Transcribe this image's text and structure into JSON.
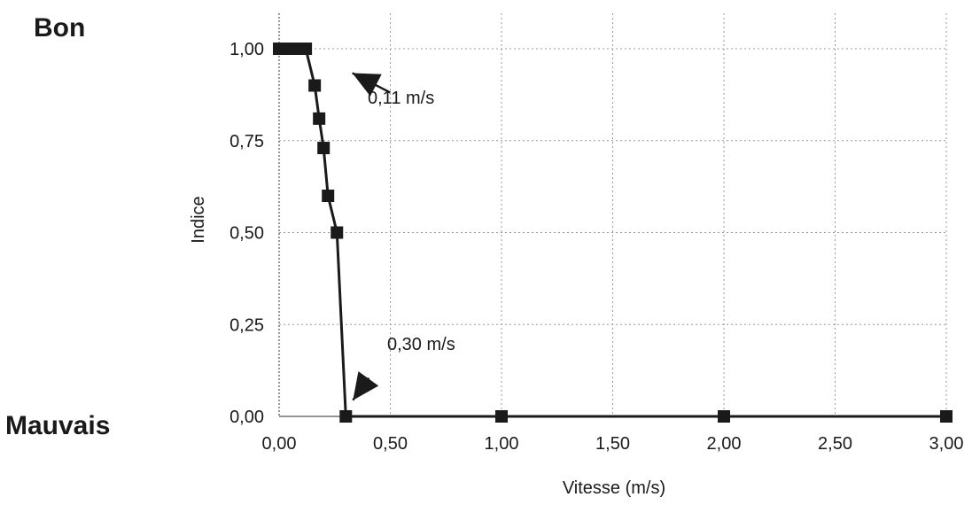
{
  "chart_data": {
    "type": "line",
    "title": "",
    "xlabel": "Vitesse (m/s)",
    "ylabel": "Indice",
    "xlim": [
      0,
      3
    ],
    "ylim": [
      0,
      1
    ],
    "grid": true,
    "x_ticks": [
      "0,00",
      "0,50",
      "1,00",
      "1,50",
      "2,00",
      "2,50",
      "3,00"
    ],
    "x_tick_values": [
      0,
      0.5,
      1,
      1.5,
      2,
      2.5,
      3
    ],
    "y_ticks": [
      "0,00",
      "0,25",
      "0,50",
      "0,75",
      "1,00"
    ],
    "y_tick_values": [
      0,
      0.25,
      0.5,
      0.75,
      1
    ],
    "series": [
      {
        "x": [
          0.0,
          0.02,
          0.04,
          0.06,
          0.08,
          0.1,
          0.12,
          0.16,
          0.18,
          0.2,
          0.22,
          0.26,
          0.3,
          1.0,
          2.0,
          3.0
        ],
        "y": [
          1.0,
          1.0,
          1.0,
          1.0,
          1.0,
          1.0,
          1.0,
          0.9,
          0.81,
          0.73,
          0.6,
          0.5,
          0.0,
          0.0,
          0.0,
          0.0
        ],
        "color": "#1a1a1a",
        "marker": "square"
      }
    ],
    "annotations": [
      {
        "text": "0,11 m/s",
        "arrow_to": [
          0.13,
          0.97
        ]
      },
      {
        "text": "0,30 m/s",
        "arrow_to": [
          0.3,
          0.02
        ]
      }
    ],
    "quality_labels": {
      "top": "Bon",
      "bottom": "Mauvais"
    }
  }
}
